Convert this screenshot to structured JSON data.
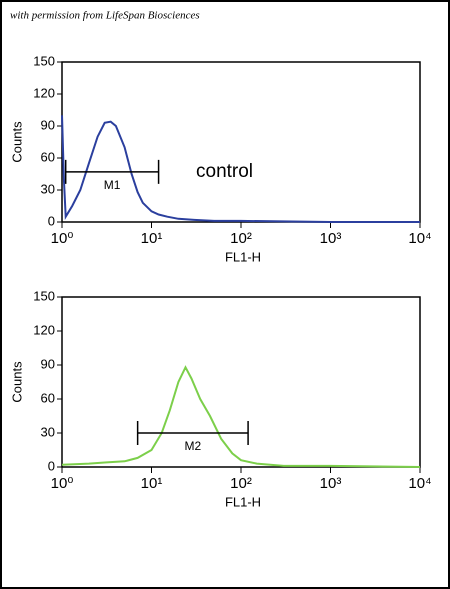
{
  "credit": "with permission from LifeSpan Biosciences",
  "chart_data": [
    {
      "type": "line",
      "xlabel": "FL1-H",
      "ylabel": "Counts",
      "annotation": "control",
      "color": "#2b3f9e",
      "log_x": true,
      "x": [
        1,
        1.05,
        1.1,
        1.3,
        1.6,
        2,
        2.5,
        3,
        3.5,
        4,
        5,
        6,
        7,
        8,
        10,
        12,
        15,
        20,
        30,
        50,
        100,
        1000,
        10000
      ],
      "values": [
        100,
        40,
        5,
        15,
        30,
        55,
        80,
        93,
        94,
        90,
        70,
        45,
        28,
        18,
        10,
        7,
        5,
        3,
        2,
        1,
        1,
        0,
        0
      ],
      "xlim": [
        1,
        10000
      ],
      "ylim": [
        0,
        150
      ],
      "xticks": [
        {
          "value": 1,
          "label": "10⁰"
        },
        {
          "value": 10,
          "label": "10¹"
        },
        {
          "value": 100,
          "label": "10²"
        },
        {
          "value": 1000,
          "label": "10³"
        },
        {
          "value": 10000,
          "label": "10⁴"
        }
      ],
      "yticks": [
        0,
        30,
        60,
        90,
        120,
        150
      ],
      "gate": {
        "label": "M1",
        "x": [
          1.1,
          12
        ],
        "y": 47
      }
    },
    {
      "type": "line",
      "xlabel": "FL1-H",
      "ylabel": "Counts",
      "color": "#7ccf4a",
      "log_x": true,
      "x": [
        1,
        2,
        3,
        5,
        7,
        10,
        13,
        16,
        20,
        24,
        28,
        35,
        45,
        60,
        80,
        100,
        150,
        300,
        1000,
        10000
      ],
      "values": [
        2,
        3,
        4,
        5,
        8,
        15,
        30,
        50,
        75,
        88,
        78,
        60,
        45,
        25,
        12,
        6,
        3,
        1,
        1,
        0
      ],
      "xlim": [
        1,
        10000
      ],
      "ylim": [
        0,
        150
      ],
      "xticks": [
        {
          "value": 1,
          "label": "10⁰"
        },
        {
          "value": 10,
          "label": "10¹"
        },
        {
          "value": 100,
          "label": "10²"
        },
        {
          "value": 1000,
          "label": "10³"
        },
        {
          "value": 10000,
          "label": "10⁴"
        }
      ],
      "yticks": [
        0,
        30,
        60,
        90,
        120,
        150
      ],
      "gate": {
        "label": "M2",
        "x": [
          7,
          120
        ],
        "y": 30
      }
    }
  ]
}
